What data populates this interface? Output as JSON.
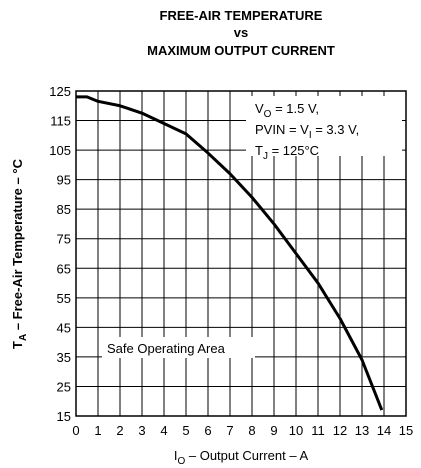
{
  "chart_data": {
    "type": "line",
    "title": [
      "FREE-AIR TEMPERATURE",
      "vs",
      "MAXIMUM OUTPUT CURRENT"
    ],
    "x": [
      0,
      0.5,
      1,
      2,
      3,
      4,
      5,
      6,
      7,
      8,
      9,
      10,
      11,
      12,
      13,
      13.9
    ],
    "series": [
      {
        "color": "#000000",
        "values": [
          123,
          123,
          121.5,
          120,
          117.5,
          114,
          110.5,
          104,
          97,
          89,
          80,
          70,
          60,
          48,
          34,
          17
        ]
      }
    ],
    "xlim": [
      0,
      15
    ],
    "xticks": [
      0,
      1,
      2,
      3,
      4,
      5,
      6,
      7,
      8,
      9,
      10,
      11,
      12,
      13,
      14,
      15
    ],
    "ylim": [
      15,
      125
    ],
    "yticks": [
      15,
      25,
      35,
      45,
      55,
      65,
      75,
      85,
      95,
      105,
      115,
      125
    ],
    "grid": true,
    "xlabel": [
      {
        "text": "I"
      },
      {
        "text": "O",
        "sub": true
      },
      {
        "text": " – Output Current – A"
      }
    ],
    "ylabel": [
      {
        "text": "T"
      },
      {
        "text": "A",
        "sub": true
      },
      {
        "text": " – Free-Air Temperature – °C"
      }
    ],
    "annotations": [
      [
        {
          "text": "V"
        },
        {
          "text": "O",
          "sub": true
        },
        {
          "text": " = 1.5 V,"
        }
      ],
      [
        {
          "text": "PVIN = V"
        },
        {
          "text": "I",
          "sub": true
        },
        {
          "text": " = 3.3 V,"
        }
      ],
      [
        {
          "text": "T"
        },
        {
          "text": "J",
          "sub": true
        },
        {
          "text": " = 125°C"
        }
      ]
    ],
    "region_label": "Safe Operating Area"
  }
}
